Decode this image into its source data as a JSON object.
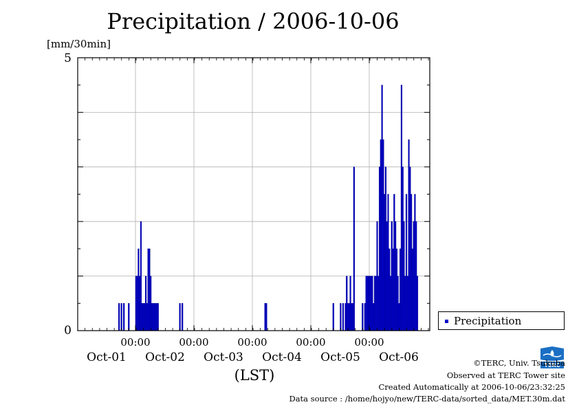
{
  "chart_data": {
    "type": "bar",
    "title": "Precipitation / 2006-10-06",
    "ylabel": "[mm/30min]",
    "xlabel": "(LST)",
    "ylim": [
      0,
      5
    ],
    "y_ticks": [
      "0",
      "5"
    ],
    "x_ticks": [
      {
        "time": "00:00",
        "date": "Oct-01"
      },
      {
        "time": "00:00",
        "date": "Oct-02"
      },
      {
        "time": "00:00",
        "date": "Oct-03"
      },
      {
        "time": "00:00",
        "date": "Oct-04"
      },
      {
        "time": "00:00",
        "date": "Oct-05"
      },
      {
        "time": "00:00",
        "date": "Oct-06"
      }
    ],
    "grid": true,
    "legend": {
      "position": "bottom-right",
      "entries": [
        "Precipitation"
      ]
    },
    "color": "#0000cc",
    "series": [
      {
        "name": "Precipitation",
        "points": [
          [
            "2006-09-30 17:00",
            0.5
          ],
          [
            "2006-09-30 18:00",
            0.5
          ],
          [
            "2006-09-30 19:00",
            0.5
          ],
          [
            "2006-09-30 21:00",
            0.5
          ],
          [
            "2006-10-01 00:00",
            1.0
          ],
          [
            "2006-10-01 00:30",
            1.0
          ],
          [
            "2006-10-01 01:00",
            1.5
          ],
          [
            "2006-10-01 01:30",
            1.0
          ],
          [
            "2006-10-01 02:00",
            2.0
          ],
          [
            "2006-10-01 02:30",
            0.5
          ],
          [
            "2006-10-01 03:00",
            0.5
          ],
          [
            "2006-10-01 03:30",
            0.5
          ],
          [
            "2006-10-01 04:00",
            1.0
          ],
          [
            "2006-10-01 04:30",
            0.5
          ],
          [
            "2006-10-01 05:00",
            1.5
          ],
          [
            "2006-10-01 05:30",
            1.5
          ],
          [
            "2006-10-01 06:00",
            1.0
          ],
          [
            "2006-10-01 06:30",
            0.5
          ],
          [
            "2006-10-01 07:00",
            0.5
          ],
          [
            "2006-10-01 07:30",
            0.5
          ],
          [
            "2006-10-01 08:00",
            0.5
          ],
          [
            "2006-10-01 08:30",
            0.5
          ],
          [
            "2006-10-01 09:00",
            0.5
          ],
          [
            "2006-10-01 18:00",
            0.5
          ],
          [
            "2006-10-01 19:00",
            0.5
          ],
          [
            "2006-10-03 05:00",
            0.5
          ],
          [
            "2006-10-03 05:30",
            0.5
          ],
          [
            "2006-10-04 09:00",
            0.5
          ],
          [
            "2006-10-04 12:00",
            0.5
          ],
          [
            "2006-10-04 13:00",
            0.5
          ],
          [
            "2006-10-04 14:00",
            0.5
          ],
          [
            "2006-10-04 14:30",
            1.0
          ],
          [
            "2006-10-04 15:00",
            0.5
          ],
          [
            "2006-10-04 15:30",
            0.5
          ],
          [
            "2006-10-04 16:00",
            1.0
          ],
          [
            "2006-10-04 16:30",
            0.5
          ],
          [
            "2006-10-04 17:00",
            0.5
          ],
          [
            "2006-10-04 17:30",
            3.0
          ],
          [
            "2006-10-04 21:00",
            0.5
          ],
          [
            "2006-10-04 22:00",
            0.5
          ],
          [
            "2006-10-04 22:30",
            1.0
          ],
          [
            "2006-10-04 23:00",
            1.0
          ],
          [
            "2006-10-04 23:30",
            1.0
          ],
          [
            "2006-10-05 00:00",
            1.0
          ],
          [
            "2006-10-05 00:30",
            1.0
          ],
          [
            "2006-10-05 01:00",
            1.0
          ],
          [
            "2006-10-05 01:30",
            0.5
          ],
          [
            "2006-10-05 02:00",
            1.0
          ],
          [
            "2006-10-05 02:30",
            1.0
          ],
          [
            "2006-10-05 03:00",
            2.0
          ],
          [
            "2006-10-05 03:30",
            1.0
          ],
          [
            "2006-10-05 04:00",
            3.0
          ],
          [
            "2006-10-05 04:30",
            3.5
          ],
          [
            "2006-10-05 05:00",
            4.5
          ],
          [
            "2006-10-05 05:30",
            3.5
          ],
          [
            "2006-10-05 06:00",
            2.5
          ],
          [
            "2006-10-05 06:30",
            3.0
          ],
          [
            "2006-10-05 07:00",
            2.0
          ],
          [
            "2006-10-05 07:30",
            2.5
          ],
          [
            "2006-10-05 08:00",
            1.5
          ],
          [
            "2006-10-05 08:30",
            1.0
          ],
          [
            "2006-10-05 09:00",
            2.0
          ],
          [
            "2006-10-05 09:30",
            1.5
          ],
          [
            "2006-10-05 10:00",
            2.5
          ],
          [
            "2006-10-05 10:30",
            2.0
          ],
          [
            "2006-10-05 11:00",
            1.5
          ],
          [
            "2006-10-05 11:30",
            1.0
          ],
          [
            "2006-10-05 12:00",
            0.5
          ],
          [
            "2006-10-05 12:30",
            1.5
          ],
          [
            "2006-10-05 13:00",
            4.5
          ],
          [
            "2006-10-05 13:30",
            3.0
          ],
          [
            "2006-10-05 14:00",
            2.0
          ],
          [
            "2006-10-05 14:30",
            1.0
          ],
          [
            "2006-10-05 15:00",
            2.5
          ],
          [
            "2006-10-05 15:30",
            1.0
          ],
          [
            "2006-10-05 16:00",
            3.5
          ],
          [
            "2006-10-05 16:30",
            3.0
          ],
          [
            "2006-10-05 17:00",
            2.5
          ],
          [
            "2006-10-05 17:30",
            1.5
          ],
          [
            "2006-10-05 18:00",
            2.0
          ],
          [
            "2006-10-05 18:30",
            2.5
          ],
          [
            "2006-10-05 19:00",
            2.0
          ],
          [
            "2006-10-05 19:30",
            1.0
          ]
        ]
      }
    ]
  },
  "credits": {
    "copyright": "©TERC, Univ. Tsukuba",
    "observed": "Observed at TERC Tower site",
    "created": "Created Automatically at 2006-10-06/23:32:25",
    "source": "Data source : /home/hojyo/new/TERC-data/sorted_data/MET.30m.dat"
  },
  "logo": {
    "text": "TERC"
  }
}
